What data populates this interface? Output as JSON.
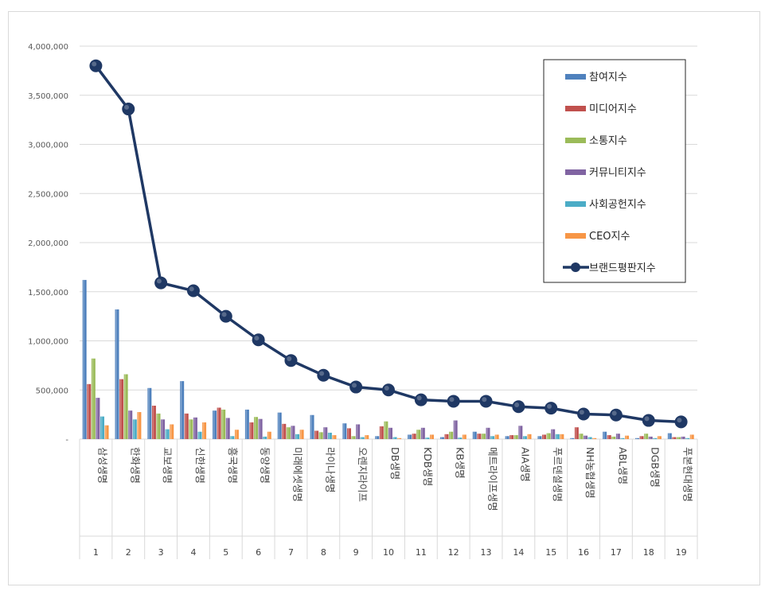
{
  "chart_data": {
    "type": "bar",
    "combo": "bar+line",
    "categories": [
      "삼성생명",
      "한화생명",
      "교보생명",
      "신한생명",
      "흥국생명",
      "동양생명",
      "미래에셋생명",
      "라이나생명",
      "오렌지라이프",
      "DB생명",
      "KDB생명",
      "KB생명",
      "메트라이프생명",
      "AIA생명",
      "푸르덴셜생명",
      "NH농협생명",
      "ABL생명",
      "DGB생명",
      "푸본현대생명"
    ],
    "ranks": [
      "1",
      "2",
      "3",
      "4",
      "5",
      "6",
      "7",
      "8",
      "9",
      "10",
      "11",
      "12",
      "13",
      "14",
      "15",
      "16",
      "17",
      "18",
      "19"
    ],
    "ylim": [
      0,
      4000000
    ],
    "yticks": [
      "-",
      "500,000",
      "1,000,000",
      "1,500,000",
      "2,000,000",
      "2,500,000",
      "3,000,000",
      "3,500,000",
      "4,000,000"
    ],
    "grid": true,
    "legend_position": "top-right",
    "series": [
      {
        "name": "참여지수",
        "type": "bar",
        "color": "#4f81bd",
        "values": [
          1620000,
          1320000,
          520000,
          590000,
          290000,
          300000,
          270000,
          245000,
          160000,
          30000,
          45000,
          20000,
          75000,
          30000,
          30000,
          10000,
          75000,
          10000,
          60000
        ]
      },
      {
        "name": "미디어지수",
        "type": "bar",
        "color": "#c0504d",
        "values": [
          560000,
          610000,
          340000,
          260000,
          320000,
          170000,
          155000,
          85000,
          110000,
          130000,
          55000,
          50000,
          55000,
          40000,
          45000,
          120000,
          40000,
          30000,
          20000
        ]
      },
      {
        "name": "소통지수",
        "type": "bar",
        "color": "#9bbb59",
        "values": [
          820000,
          660000,
          260000,
          200000,
          300000,
          225000,
          120000,
          70000,
          30000,
          180000,
          95000,
          75000,
          55000,
          40000,
          60000,
          55000,
          25000,
          55000,
          20000
        ]
      },
      {
        "name": "커뮤니티지수",
        "type": "bar",
        "color": "#8064a2",
        "values": [
          420000,
          290000,
          200000,
          220000,
          215000,
          205000,
          135000,
          120000,
          150000,
          115000,
          115000,
          190000,
          115000,
          135000,
          100000,
          35000,
          55000,
          25000,
          25000
        ]
      },
      {
        "name": "사회공헌지수",
        "type": "bar",
        "color": "#4bacc6",
        "values": [
          230000,
          200000,
          100000,
          75000,
          30000,
          25000,
          50000,
          65000,
          20000,
          20000,
          15000,
          15000,
          30000,
          30000,
          50000,
          20000,
          10000,
          10000,
          10000
        ]
      },
      {
        "name": "CEO지수",
        "type": "bar",
        "color": "#f79646",
        "values": [
          140000,
          275000,
          150000,
          170000,
          95000,
          75000,
          95000,
          40000,
          40000,
          10000,
          45000,
          45000,
          45000,
          50000,
          50000,
          10000,
          35000,
          30000,
          45000
        ]
      },
      {
        "name": "브랜드평판지수",
        "type": "line",
        "color": "#1f3864",
        "values": [
          3800000,
          3360000,
          1590000,
          1510000,
          1250000,
          1010000,
          800000,
          650000,
          530000,
          500000,
          400000,
          385000,
          385000,
          330000,
          315000,
          255000,
          245000,
          190000,
          175000
        ]
      }
    ]
  }
}
